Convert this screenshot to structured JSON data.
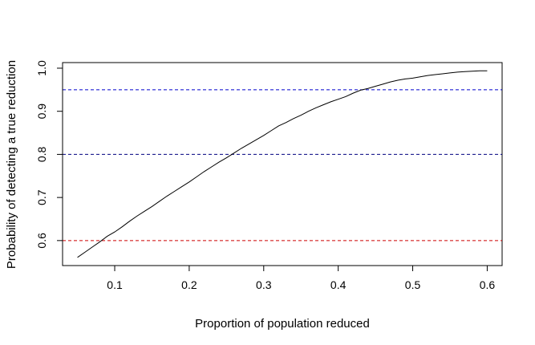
{
  "chart_data": {
    "type": "line",
    "title": "",
    "xlabel": "Proportion of population reduced",
    "ylabel": "Probability of detecting a true reduction",
    "xlim": [
      0.03,
      0.62
    ],
    "ylim": [
      0.542,
      1.013
    ],
    "x_ticks": [
      0.1,
      0.2,
      0.3,
      0.4,
      0.5,
      0.6
    ],
    "y_ticks": [
      0.6,
      0.7,
      0.8,
      0.9,
      1.0
    ],
    "x_tick_labels": [
      "0.1",
      "0.2",
      "0.3",
      "0.4",
      "0.5",
      "0.6"
    ],
    "y_tick_labels": [
      "0.6",
      "0.7",
      "0.8",
      "0.9",
      "1.0"
    ],
    "grid": false,
    "series": [
      {
        "color": "#000000",
        "x": [
          0.05,
          0.06,
          0.07,
          0.08,
          0.09,
          0.1,
          0.11,
          0.12,
          0.13,
          0.14,
          0.15,
          0.16,
          0.17,
          0.18,
          0.19,
          0.2,
          0.21,
          0.22,
          0.23,
          0.24,
          0.25,
          0.26,
          0.27,
          0.28,
          0.29,
          0.3,
          0.31,
          0.32,
          0.33,
          0.34,
          0.35,
          0.36,
          0.37,
          0.38,
          0.39,
          0.4,
          0.41,
          0.42,
          0.43,
          0.44,
          0.45,
          0.46,
          0.47,
          0.48,
          0.49,
          0.5,
          0.51,
          0.52,
          0.53,
          0.54,
          0.55,
          0.56,
          0.57,
          0.58,
          0.59,
          0.6
        ],
        "y": [
          0.561,
          0.573,
          0.585,
          0.597,
          0.61,
          0.62,
          0.632,
          0.645,
          0.657,
          0.668,
          0.679,
          0.691,
          0.703,
          0.714,
          0.725,
          0.736,
          0.748,
          0.76,
          0.771,
          0.782,
          0.792,
          0.803,
          0.814,
          0.824,
          0.834,
          0.844,
          0.855,
          0.866,
          0.874,
          0.883,
          0.891,
          0.9,
          0.908,
          0.915,
          0.922,
          0.928,
          0.934,
          0.942,
          0.949,
          0.953,
          0.958,
          0.963,
          0.968,
          0.972,
          0.975,
          0.977,
          0.98,
          0.983,
          0.985,
          0.987,
          0.989,
          0.991,
          0.992,
          0.993,
          0.994,
          0.994
        ]
      }
    ],
    "reference_lines": [
      {
        "y": 0.95,
        "color": "#0000cd",
        "style": "dashed"
      },
      {
        "y": 0.8,
        "color": "#000080",
        "style": "dashed"
      },
      {
        "y": 0.6,
        "color": "#cd0000",
        "style": "dashed"
      }
    ]
  }
}
